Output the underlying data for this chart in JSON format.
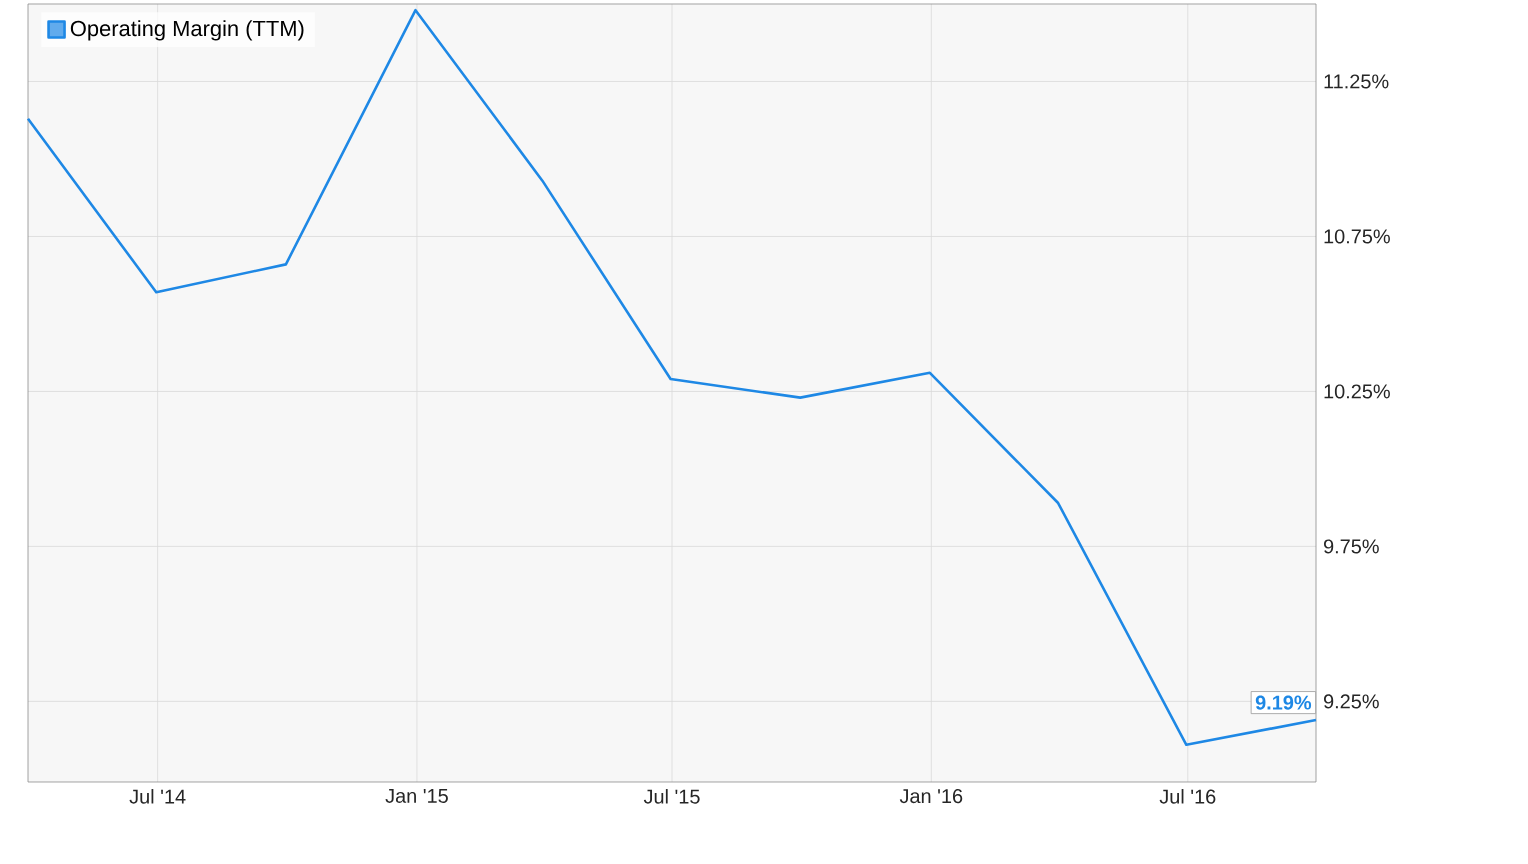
{
  "chart_data": {
    "type": "line",
    "x": [
      "2014-03-31",
      "2014-06-30",
      "2014-09-30",
      "2014-12-31",
      "2015-03-31",
      "2015-06-30",
      "2015-09-30",
      "2015-12-31",
      "2016-03-31",
      "2016-06-30",
      "2016-09-30"
    ],
    "series": [
      {
        "name": "Operating Margin (TTM)",
        "color": "#1e88e5",
        "values": [
          11.13,
          10.57,
          10.66,
          11.48,
          10.93,
          10.29,
          10.23,
          10.31,
          9.89,
          9.11,
          9.19
        ],
        "value_labels": [
          null,
          null,
          null,
          null,
          null,
          null,
          null,
          null,
          null,
          null,
          "9.19%"
        ]
      }
    ],
    "xlim": [
      "2014-03-31",
      "2016-09-30"
    ],
    "xticks": [
      {
        "value": "2014-07-01",
        "label": "Jul '14"
      },
      {
        "value": "2015-01-01",
        "label": "Jan '15"
      },
      {
        "value": "2015-07-01",
        "label": "Jul '15"
      },
      {
        "value": "2016-01-01",
        "label": "Jan '16"
      },
      {
        "value": "2016-07-01",
        "label": "Jul '16"
      }
    ],
    "ylim": [
      8.99,
      11.5
    ],
    "yticks": [
      {
        "value": 9.25,
        "label": "9.25%"
      },
      {
        "value": 9.75,
        "label": "9.75%"
      },
      {
        "value": 10.25,
        "label": "10.25%"
      },
      {
        "value": 10.75,
        "label": "10.75%"
      },
      {
        "value": 11.25,
        "label": "11.25%"
      }
    ],
    "grid": true,
    "legend": "top left",
    "marker": "none",
    "line_style": "solid"
  }
}
